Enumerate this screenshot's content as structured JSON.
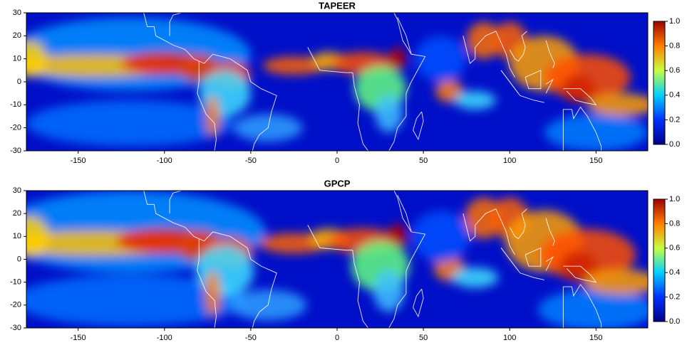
{
  "chart_data": [
    {
      "type": "heatmap",
      "title": "TAPEER",
      "xlim": [
        -180,
        180
      ],
      "ylim": [
        -30,
        30
      ],
      "xticks": [
        -150,
        -100,
        -50,
        0,
        50,
        100,
        150
      ],
      "yticks": [
        -30,
        -20,
        -10,
        0,
        10,
        20,
        30
      ],
      "colorbar": {
        "lim": [
          0,
          1
        ],
        "ticks": [
          {
            "value": 0,
            "label": "0.0"
          },
          {
            "value": 0.2,
            "label": "0.2"
          },
          {
            "value": 0.4,
            "label": "0.4"
          },
          {
            "value": 0.6,
            "label": "0.6"
          },
          {
            "value": 0.8,
            "label": "0.8"
          },
          {
            "value": 1,
            "label": "1.0"
          }
        ]
      }
    },
    {
      "type": "heatmap",
      "title": "GPCP",
      "xlim": [
        -180,
        180
      ],
      "ylim": [
        -30,
        30
      ],
      "xticks": [
        -150,
        -100,
        -50,
        0,
        50,
        100,
        150
      ],
      "yticks": [
        -30,
        -20,
        -10,
        0,
        10,
        20,
        30
      ],
      "colorbar": {
        "lim": [
          0,
          1
        ],
        "ticks": [
          {
            "value": 0,
            "label": "0.0"
          },
          {
            "value": 0.2,
            "label": "0.2"
          },
          {
            "value": 0.4,
            "label": "0.4"
          },
          {
            "value": 0.6,
            "label": "0.6"
          },
          {
            "value": 0.8,
            "label": "0.8"
          },
          {
            "value": 1,
            "label": "1.0"
          }
        ]
      }
    }
  ]
}
